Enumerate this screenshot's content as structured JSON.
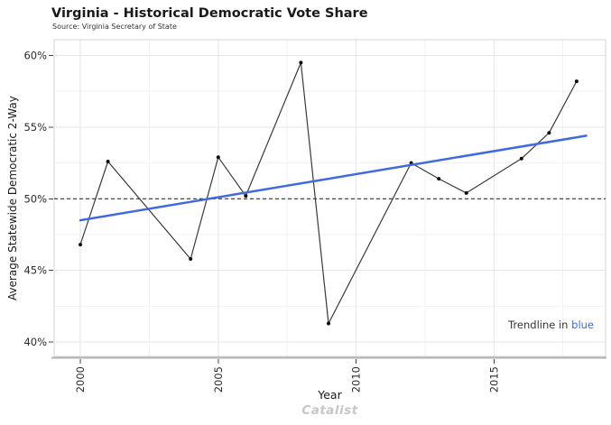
{
  "chart_data": {
    "type": "line",
    "title": "Virginia - Historical Democratic Vote Share",
    "subtitle": "Source: Virginia Secretary of State",
    "xlabel": "Year",
    "ylabel": "Average Statewide Democratic 2-Way",
    "series": [
      {
        "name": "Average Statewide Democratic 2-Way Vote Share",
        "x": [
          2000,
          2001,
          2004,
          2005,
          2006,
          2008,
          2009,
          2012,
          2013,
          2014,
          2016,
          2017,
          2018
        ],
        "y": [
          46.8,
          52.6,
          45.8,
          52.9,
          50.2,
          59.5,
          41.3,
          52.5,
          51.4,
          50.4,
          52.8,
          54.6,
          58.2
        ]
      }
    ],
    "trendline": {
      "x": [
        2000,
        2018.35
      ],
      "y": [
        48.5,
        54.4
      ],
      "color": "#4169e1"
    },
    "reference_line": {
      "y": 50,
      "style": "dashed",
      "color": "#1a1a1a"
    },
    "xlim": [
      1999.05,
      2019.05
    ],
    "ylim": [
      39.0,
      61.1
    ],
    "x_ticks": {
      "values": [
        2000,
        2005,
        2010,
        2015
      ],
      "labels": [
        "2000",
        "2005",
        "2010",
        "2015"
      ],
      "rotation": -90
    },
    "y_ticks": {
      "values": [
        40,
        45,
        50,
        55,
        60
      ],
      "labels": [
        "40%",
        "45%",
        "50%",
        "55%",
        "60%"
      ]
    },
    "x_minor_ticks": [
      2002.5,
      2007.5,
      2012.5,
      2017.5
    ],
    "y_minor_ticks": [
      42.5,
      47.5,
      52.5,
      57.5
    ],
    "grid": "major+minor",
    "legend": "none",
    "annotation": {
      "prefix": "Trendline in ",
      "highlight": "blue",
      "highlight_color": "#4169e1"
    },
    "watermark": "Catalist",
    "colors": {
      "data_line": "#3a3a3a",
      "data_point": "#0d0d0d",
      "trendline": "#4169e1",
      "grid_major": "#e6e6e6",
      "grid_minor": "#f2f2f2",
      "panel_border": "#d4d4d4",
      "axis_line": "#b3b3b3",
      "tick_label": "#2b2b2b"
    }
  }
}
